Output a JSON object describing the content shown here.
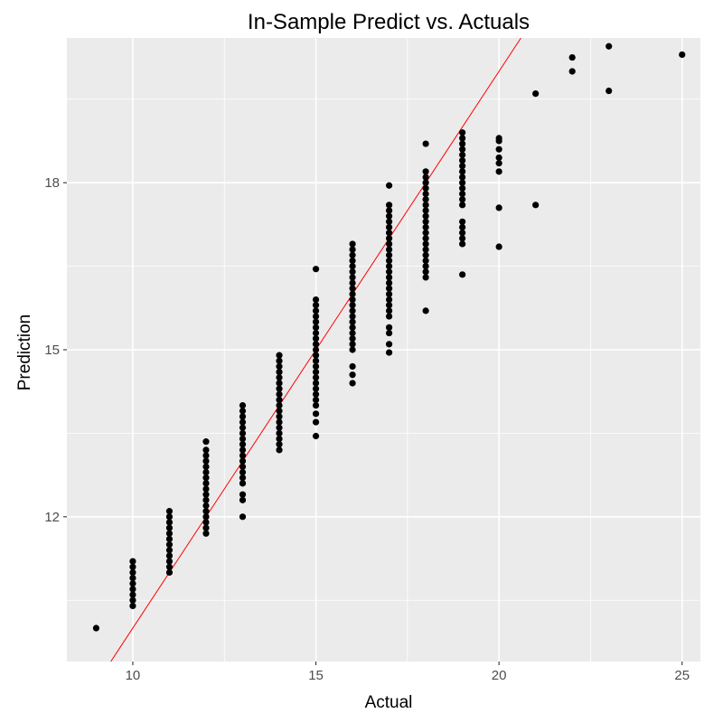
{
  "chart_data": {
    "type": "scatter",
    "title": "In-Sample Predict vs. Actuals",
    "xlabel": "Actual",
    "ylabel": "Prediction",
    "xlim": [
      8.2,
      25.5
    ],
    "ylim": [
      9.4,
      20.6
    ],
    "x_ticks": [
      10,
      15,
      20,
      25
    ],
    "y_ticks": [
      12,
      15,
      18
    ],
    "grid": true,
    "point_color": "#000000",
    "reference_line": {
      "slope": 1,
      "intercept": 0,
      "color": "#ff0000"
    },
    "points": [
      [
        9,
        10.0
      ],
      [
        10,
        10.4
      ],
      [
        10,
        10.5
      ],
      [
        10,
        10.6
      ],
      [
        10,
        10.7
      ],
      [
        10,
        10.8
      ],
      [
        10,
        10.9
      ],
      [
        10,
        11.0
      ],
      [
        10,
        11.1
      ],
      [
        10,
        11.2
      ],
      [
        11,
        11.0
      ],
      [
        11,
        11.1
      ],
      [
        11,
        11.2
      ],
      [
        11,
        11.3
      ],
      [
        11,
        11.4
      ],
      [
        11,
        11.5
      ],
      [
        11,
        11.6
      ],
      [
        11,
        11.7
      ],
      [
        11,
        11.8
      ],
      [
        11,
        11.9
      ],
      [
        11,
        12.0
      ],
      [
        11,
        12.1
      ],
      [
        12,
        11.7
      ],
      [
        12,
        11.8
      ],
      [
        12,
        11.9
      ],
      [
        12,
        12.0
      ],
      [
        12,
        12.1
      ],
      [
        12,
        12.2
      ],
      [
        12,
        12.3
      ],
      [
        12,
        12.4
      ],
      [
        12,
        12.5
      ],
      [
        12,
        12.6
      ],
      [
        12,
        12.7
      ],
      [
        12,
        12.8
      ],
      [
        12,
        12.9
      ],
      [
        12,
        13.0
      ],
      [
        12,
        13.1
      ],
      [
        12,
        13.2
      ],
      [
        12,
        13.35
      ],
      [
        13,
        12.0
      ],
      [
        13,
        12.3
      ],
      [
        13,
        12.4
      ],
      [
        13,
        12.6
      ],
      [
        13,
        12.7
      ],
      [
        13,
        12.8
      ],
      [
        13,
        12.9
      ],
      [
        13,
        13.0
      ],
      [
        13,
        13.1
      ],
      [
        13,
        13.2
      ],
      [
        13,
        13.3
      ],
      [
        13,
        13.4
      ],
      [
        13,
        13.5
      ],
      [
        13,
        13.6
      ],
      [
        13,
        13.7
      ],
      [
        13,
        13.8
      ],
      [
        13,
        13.9
      ],
      [
        13,
        14.0
      ],
      [
        14,
        13.2
      ],
      [
        14,
        13.3
      ],
      [
        14,
        13.4
      ],
      [
        14,
        13.5
      ],
      [
        14,
        13.6
      ],
      [
        14,
        13.7
      ],
      [
        14,
        13.8
      ],
      [
        14,
        13.9
      ],
      [
        14,
        14.0
      ],
      [
        14,
        14.1
      ],
      [
        14,
        14.2
      ],
      [
        14,
        14.3
      ],
      [
        14,
        14.4
      ],
      [
        14,
        14.5
      ],
      [
        14,
        14.6
      ],
      [
        14,
        14.7
      ],
      [
        14,
        14.8
      ],
      [
        14,
        14.9
      ],
      [
        15,
        13.45
      ],
      [
        15,
        13.7
      ],
      [
        15,
        13.85
      ],
      [
        15,
        14.0
      ],
      [
        15,
        14.1
      ],
      [
        15,
        14.2
      ],
      [
        15,
        14.3
      ],
      [
        15,
        14.4
      ],
      [
        15,
        14.5
      ],
      [
        15,
        14.6
      ],
      [
        15,
        14.7
      ],
      [
        15,
        14.8
      ],
      [
        15,
        14.9
      ],
      [
        15,
        15.0
      ],
      [
        15,
        15.1
      ],
      [
        15,
        15.2
      ],
      [
        15,
        15.3
      ],
      [
        15,
        15.4
      ],
      [
        15,
        15.5
      ],
      [
        15,
        15.6
      ],
      [
        15,
        15.7
      ],
      [
        15,
        15.8
      ],
      [
        15,
        15.9
      ],
      [
        15,
        16.45
      ],
      [
        16,
        14.4
      ],
      [
        16,
        14.55
      ],
      [
        16,
        14.7
      ],
      [
        16,
        15.0
      ],
      [
        16,
        15.1
      ],
      [
        16,
        15.2
      ],
      [
        16,
        15.3
      ],
      [
        16,
        15.4
      ],
      [
        16,
        15.5
      ],
      [
        16,
        15.6
      ],
      [
        16,
        15.7
      ],
      [
        16,
        15.8
      ],
      [
        16,
        15.9
      ],
      [
        16,
        16.0
      ],
      [
        16,
        16.1
      ],
      [
        16,
        16.2
      ],
      [
        16,
        16.3
      ],
      [
        16,
        16.4
      ],
      [
        16,
        16.5
      ],
      [
        16,
        16.6
      ],
      [
        16,
        16.7
      ],
      [
        16,
        16.8
      ],
      [
        16,
        16.9
      ],
      [
        17,
        14.95
      ],
      [
        17,
        15.1
      ],
      [
        17,
        15.3
      ],
      [
        17,
        15.4
      ],
      [
        17,
        15.6
      ],
      [
        17,
        15.7
      ],
      [
        17,
        15.8
      ],
      [
        17,
        15.9
      ],
      [
        17,
        16.0
      ],
      [
        17,
        16.1
      ],
      [
        17,
        16.2
      ],
      [
        17,
        16.3
      ],
      [
        17,
        16.4
      ],
      [
        17,
        16.5
      ],
      [
        17,
        16.6
      ],
      [
        17,
        16.7
      ],
      [
        17,
        16.8
      ],
      [
        17,
        16.9
      ],
      [
        17,
        17.0
      ],
      [
        17,
        17.1
      ],
      [
        17,
        17.2
      ],
      [
        17,
        17.3
      ],
      [
        17,
        17.4
      ],
      [
        17,
        17.5
      ],
      [
        17,
        17.6
      ],
      [
        17,
        17.95
      ],
      [
        18,
        15.7
      ],
      [
        18,
        16.3
      ],
      [
        18,
        16.4
      ],
      [
        18,
        16.5
      ],
      [
        18,
        16.6
      ],
      [
        18,
        16.7
      ],
      [
        18,
        16.8
      ],
      [
        18,
        16.9
      ],
      [
        18,
        17.0
      ],
      [
        18,
        17.1
      ],
      [
        18,
        17.2
      ],
      [
        18,
        17.3
      ],
      [
        18,
        17.4
      ],
      [
        18,
        17.5
      ],
      [
        18,
        17.6
      ],
      [
        18,
        17.7
      ],
      [
        18,
        17.8
      ],
      [
        18,
        17.9
      ],
      [
        18,
        18.0
      ],
      [
        18,
        18.1
      ],
      [
        18,
        18.2
      ],
      [
        18,
        18.7
      ],
      [
        19,
        16.35
      ],
      [
        19,
        16.9
      ],
      [
        19,
        17.0
      ],
      [
        19,
        17.1
      ],
      [
        19,
        17.2
      ],
      [
        19,
        17.3
      ],
      [
        19,
        17.6
      ],
      [
        19,
        17.7
      ],
      [
        19,
        17.8
      ],
      [
        19,
        17.9
      ],
      [
        19,
        18.0
      ],
      [
        19,
        18.1
      ],
      [
        19,
        18.2
      ],
      [
        19,
        18.3
      ],
      [
        19,
        18.4
      ],
      [
        19,
        18.5
      ],
      [
        19,
        18.6
      ],
      [
        19,
        18.7
      ],
      [
        19,
        18.8
      ],
      [
        19,
        18.9
      ],
      [
        20,
        16.85
      ],
      [
        20,
        17.55
      ],
      [
        20,
        18.2
      ],
      [
        20,
        18.35
      ],
      [
        20,
        18.45
      ],
      [
        20,
        18.6
      ],
      [
        20,
        18.75
      ],
      [
        20,
        18.8
      ],
      [
        21,
        17.6
      ],
      [
        21,
        19.6
      ],
      [
        22,
        20.0
      ],
      [
        22,
        20.25
      ],
      [
        23,
        19.65
      ],
      [
        23,
        20.45
      ],
      [
        25,
        20.3
      ]
    ]
  }
}
